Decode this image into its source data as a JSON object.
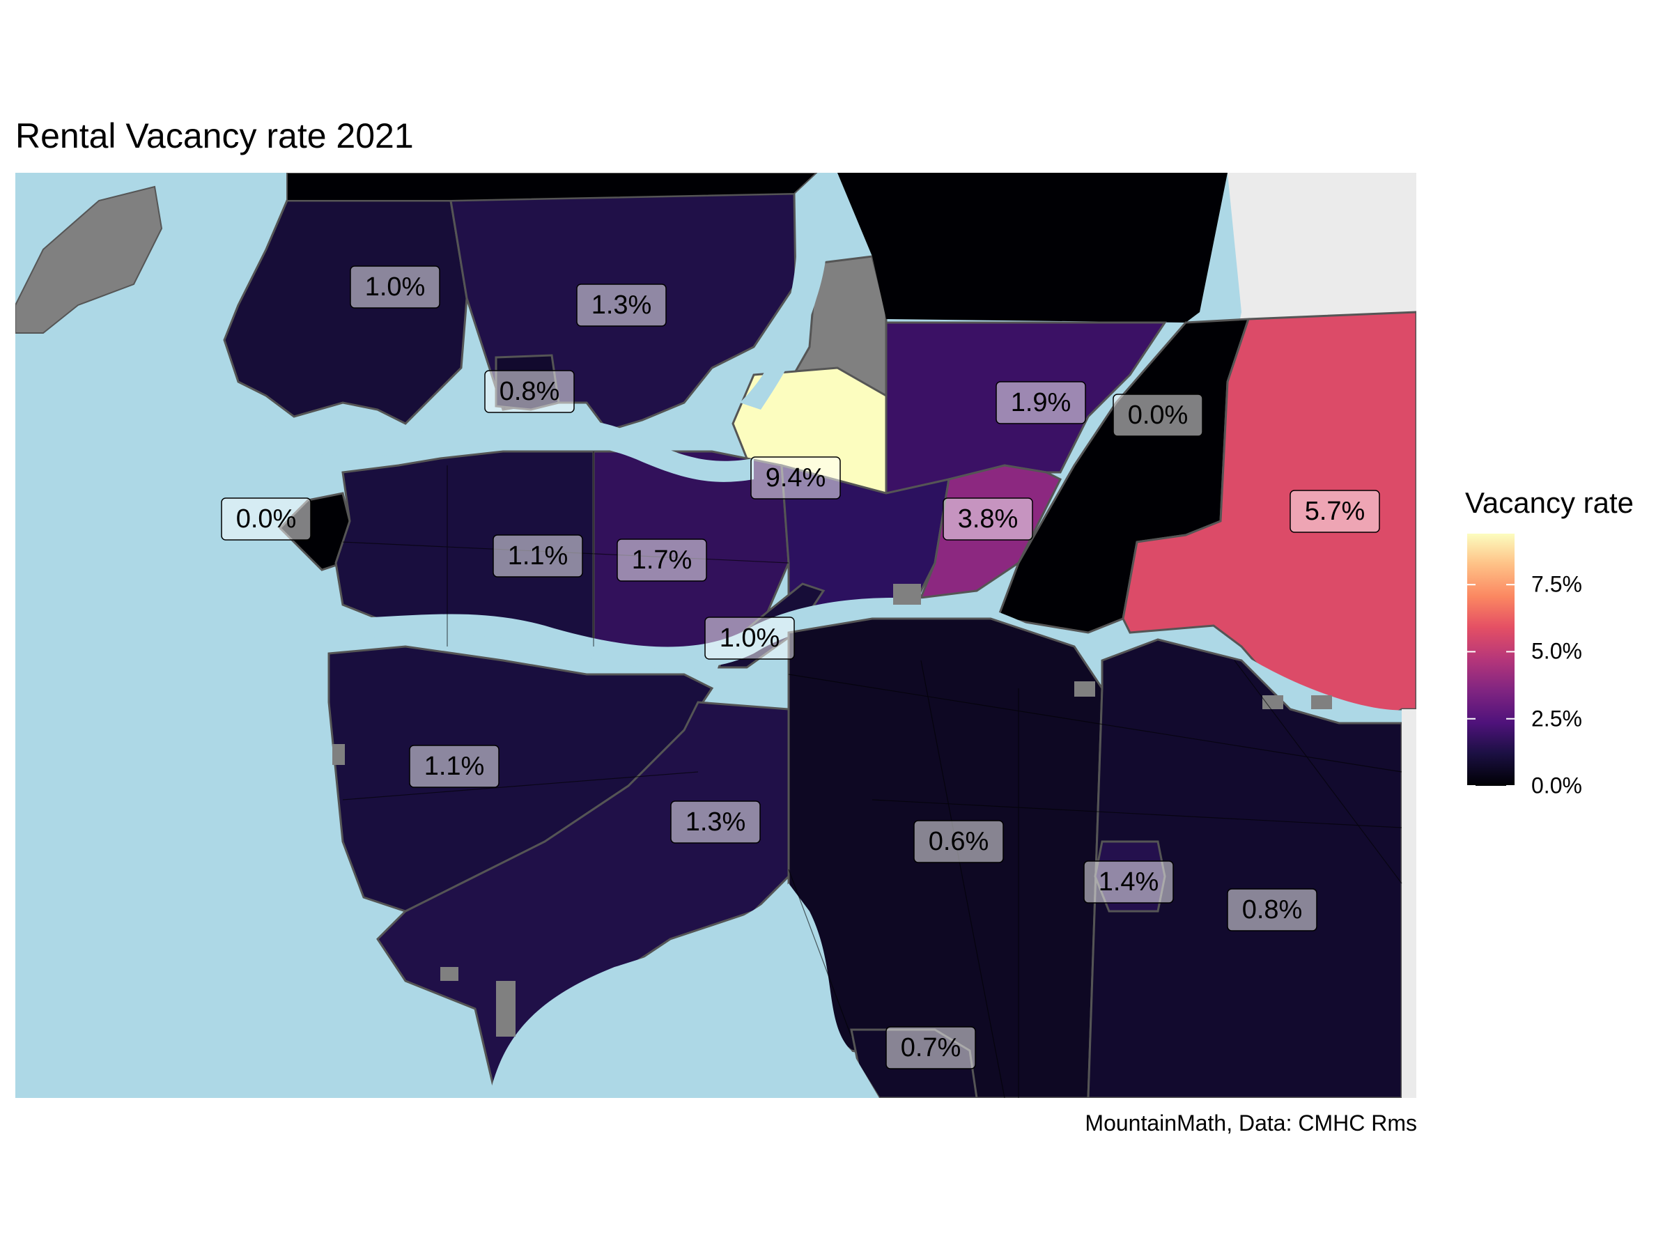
{
  "title": "Rental Vacancy rate 2021",
  "caption": "MountainMath, Data: CMHC Rms",
  "legend": {
    "title": "Vacancy rate",
    "ticks": [
      "0.0%",
      "2.5%",
      "5.0%",
      "7.5%"
    ],
    "min": 0,
    "max": 9.4,
    "tick_values": [
      0,
      2.5,
      5.0,
      7.5
    ]
  },
  "colors": {
    "water": "#add8e6",
    "no_data": "#808080",
    "outside": "#ebebeb",
    "border": "#555555",
    "label_fill": "#ffffff"
  },
  "regions": [
    {
      "id": "north-van-district-west",
      "label": "1.0%",
      "value": 1.0
    },
    {
      "id": "north-van-district-east",
      "label": "1.3%",
      "value": 1.3
    },
    {
      "id": "north-van-city",
      "label": "0.8%",
      "value": 0.8
    },
    {
      "id": "port-moody",
      "label": "9.4%",
      "value": 9.4
    },
    {
      "id": "coquitlam",
      "label": "1.9%",
      "value": 1.9
    },
    {
      "id": "pitt-meadows",
      "label": "0.0%",
      "value": 0.0
    },
    {
      "id": "maple-ridge",
      "label": "5.7%",
      "value": 5.7
    },
    {
      "id": "ubc",
      "label": "0.0%",
      "value": 0.0
    },
    {
      "id": "vancouver",
      "label": "1.1%",
      "value": 1.1
    },
    {
      "id": "burnaby",
      "label": "1.7%",
      "value": 1.7
    },
    {
      "id": "port-coquitlam",
      "label": "3.8%",
      "value": 3.8
    },
    {
      "id": "new-westminster",
      "label": "1.0%",
      "value": 1.0
    },
    {
      "id": "richmond",
      "label": "1.1%",
      "value": 1.1
    },
    {
      "id": "delta",
      "label": "1.3%",
      "value": 1.3
    },
    {
      "id": "surrey",
      "label": "0.6%",
      "value": 0.6
    },
    {
      "id": "langley-city",
      "label": "1.4%",
      "value": 1.4
    },
    {
      "id": "langley-township",
      "label": "0.8%",
      "value": 0.8
    },
    {
      "id": "white-rock",
      "label": "0.7%",
      "value": 0.7
    }
  ]
}
